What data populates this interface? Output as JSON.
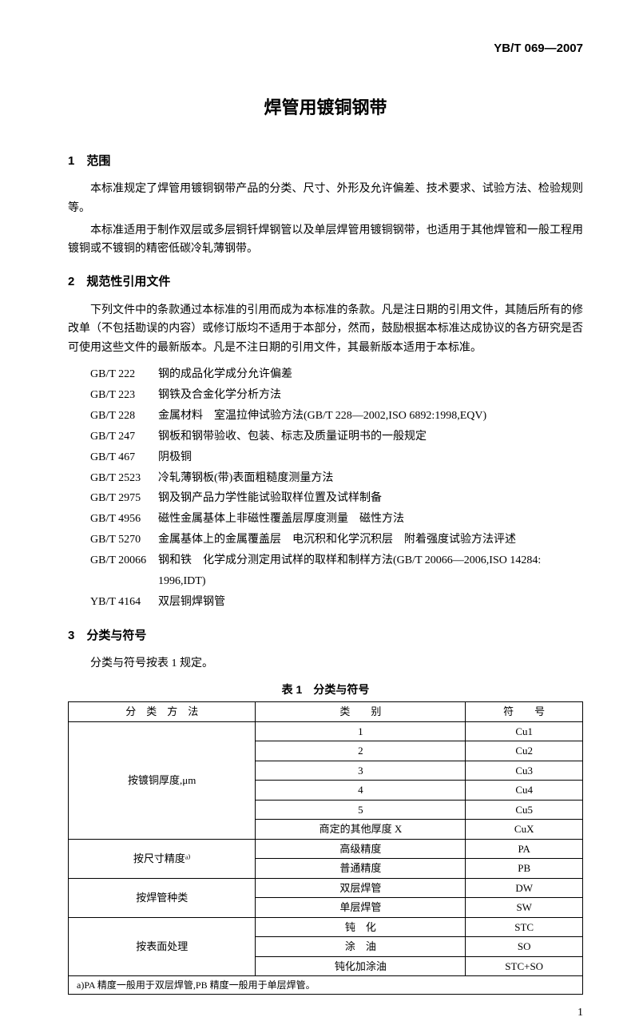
{
  "doc_code": "YB/T 069—2007",
  "main_title": "焊管用镀铜钢带",
  "section1": {
    "heading": "1 范围",
    "p1": "本标准规定了焊管用镀铜钢带产品的分类、尺寸、外形及允许偏差、技术要求、试验方法、检验规则等。",
    "p2": "本标准适用于制作双层或多层铜钎焊钢管以及单层焊管用镀铜钢带，也适用于其他焊管和一般工程用镀铜或不镀铜的精密低碳冷轧薄钢带。"
  },
  "section2": {
    "heading": "2 规范性引用文件",
    "p1": "下列文件中的条款通过本标准的引用而成为本标准的条款。凡是注日期的引用文件，其随后所有的修改单（不包括勘误的内容）或修订版均不适用于本部分，然而，鼓励根据本标准达成协议的各方研究是否可使用这些文件的最新版本。凡是不注日期的引用文件，其最新版本适用于本标准。",
    "refs": [
      {
        "code": "GB/T 222",
        "title": "钢的成品化学成分允许偏差"
      },
      {
        "code": "GB/T 223",
        "title": "钢铁及合金化学分析方法"
      },
      {
        "code": "GB/T 228",
        "title": "金属材料 室温拉伸试验方法(GB/T 228—2002,ISO 6892:1998,EQV)"
      },
      {
        "code": "GB/T 247",
        "title": "钢板和钢带验收、包装、标志及质量证明书的一般规定"
      },
      {
        "code": "GB/T 467",
        "title": "阴极铜"
      },
      {
        "code": "GB/T 2523",
        "title": "冷轧薄钢板(带)表面粗糙度测量方法"
      },
      {
        "code": "GB/T 2975",
        "title": "钢及钢产品力学性能试验取样位置及试样制备"
      },
      {
        "code": "GB/T 4956",
        "title": "磁性金属基体上非磁性覆盖层厚度测量 磁性方法"
      },
      {
        "code": "GB/T 5270",
        "title": "金属基体上的金属覆盖层 电沉积和化学沉积层 附着强度试验方法评述"
      },
      {
        "code": "GB/T 20066",
        "title": "钢和铁 化学成分测定用试样的取样和制样方法(GB/T 20066—2006,ISO 14284:"
      },
      {
        "code": "",
        "title": "1996,IDT)",
        "cont": true
      },
      {
        "code": "YB/T 4164",
        "title": "双层铜焊钢管"
      }
    ]
  },
  "section3": {
    "heading": "3 分类与符号",
    "p1": "分类与符号按表 1 规定。"
  },
  "table1": {
    "caption": "表 1 分类与符号",
    "headers": [
      "分 类 方 法",
      "类  别",
      "符  号"
    ],
    "groups": [
      {
        "method": "按镀铜厚度,μm",
        "rows": [
          {
            "cat": "1",
            "sym": "Cu1"
          },
          {
            "cat": "2",
            "sym": "Cu2"
          },
          {
            "cat": "3",
            "sym": "Cu3"
          },
          {
            "cat": "4",
            "sym": "Cu4"
          },
          {
            "cat": "5",
            "sym": "Cu5"
          },
          {
            "cat": "商定的其他厚度 X",
            "sym": "CuX"
          }
        ]
      },
      {
        "method": "按尺寸精度ᵃ⁾",
        "rows": [
          {
            "cat": "高级精度",
            "sym": "PA"
          },
          {
            "cat": "普通精度",
            "sym": "PB"
          }
        ]
      },
      {
        "method": "按焊管种类",
        "rows": [
          {
            "cat": "双层焊管",
            "sym": "DW"
          },
          {
            "cat": "单层焊管",
            "sym": "SW"
          }
        ]
      },
      {
        "method": "按表面处理",
        "rows": [
          {
            "cat": "钝 化",
            "sym": "STC"
          },
          {
            "cat": "涂 油",
            "sym": "SO"
          },
          {
            "cat": "钝化加涂油",
            "sym": "STC+SO"
          }
        ]
      }
    ],
    "footnote": "a)PA 精度一般用于双层焊管,PB 精度一般用于单层焊管。"
  },
  "page_num": "1"
}
